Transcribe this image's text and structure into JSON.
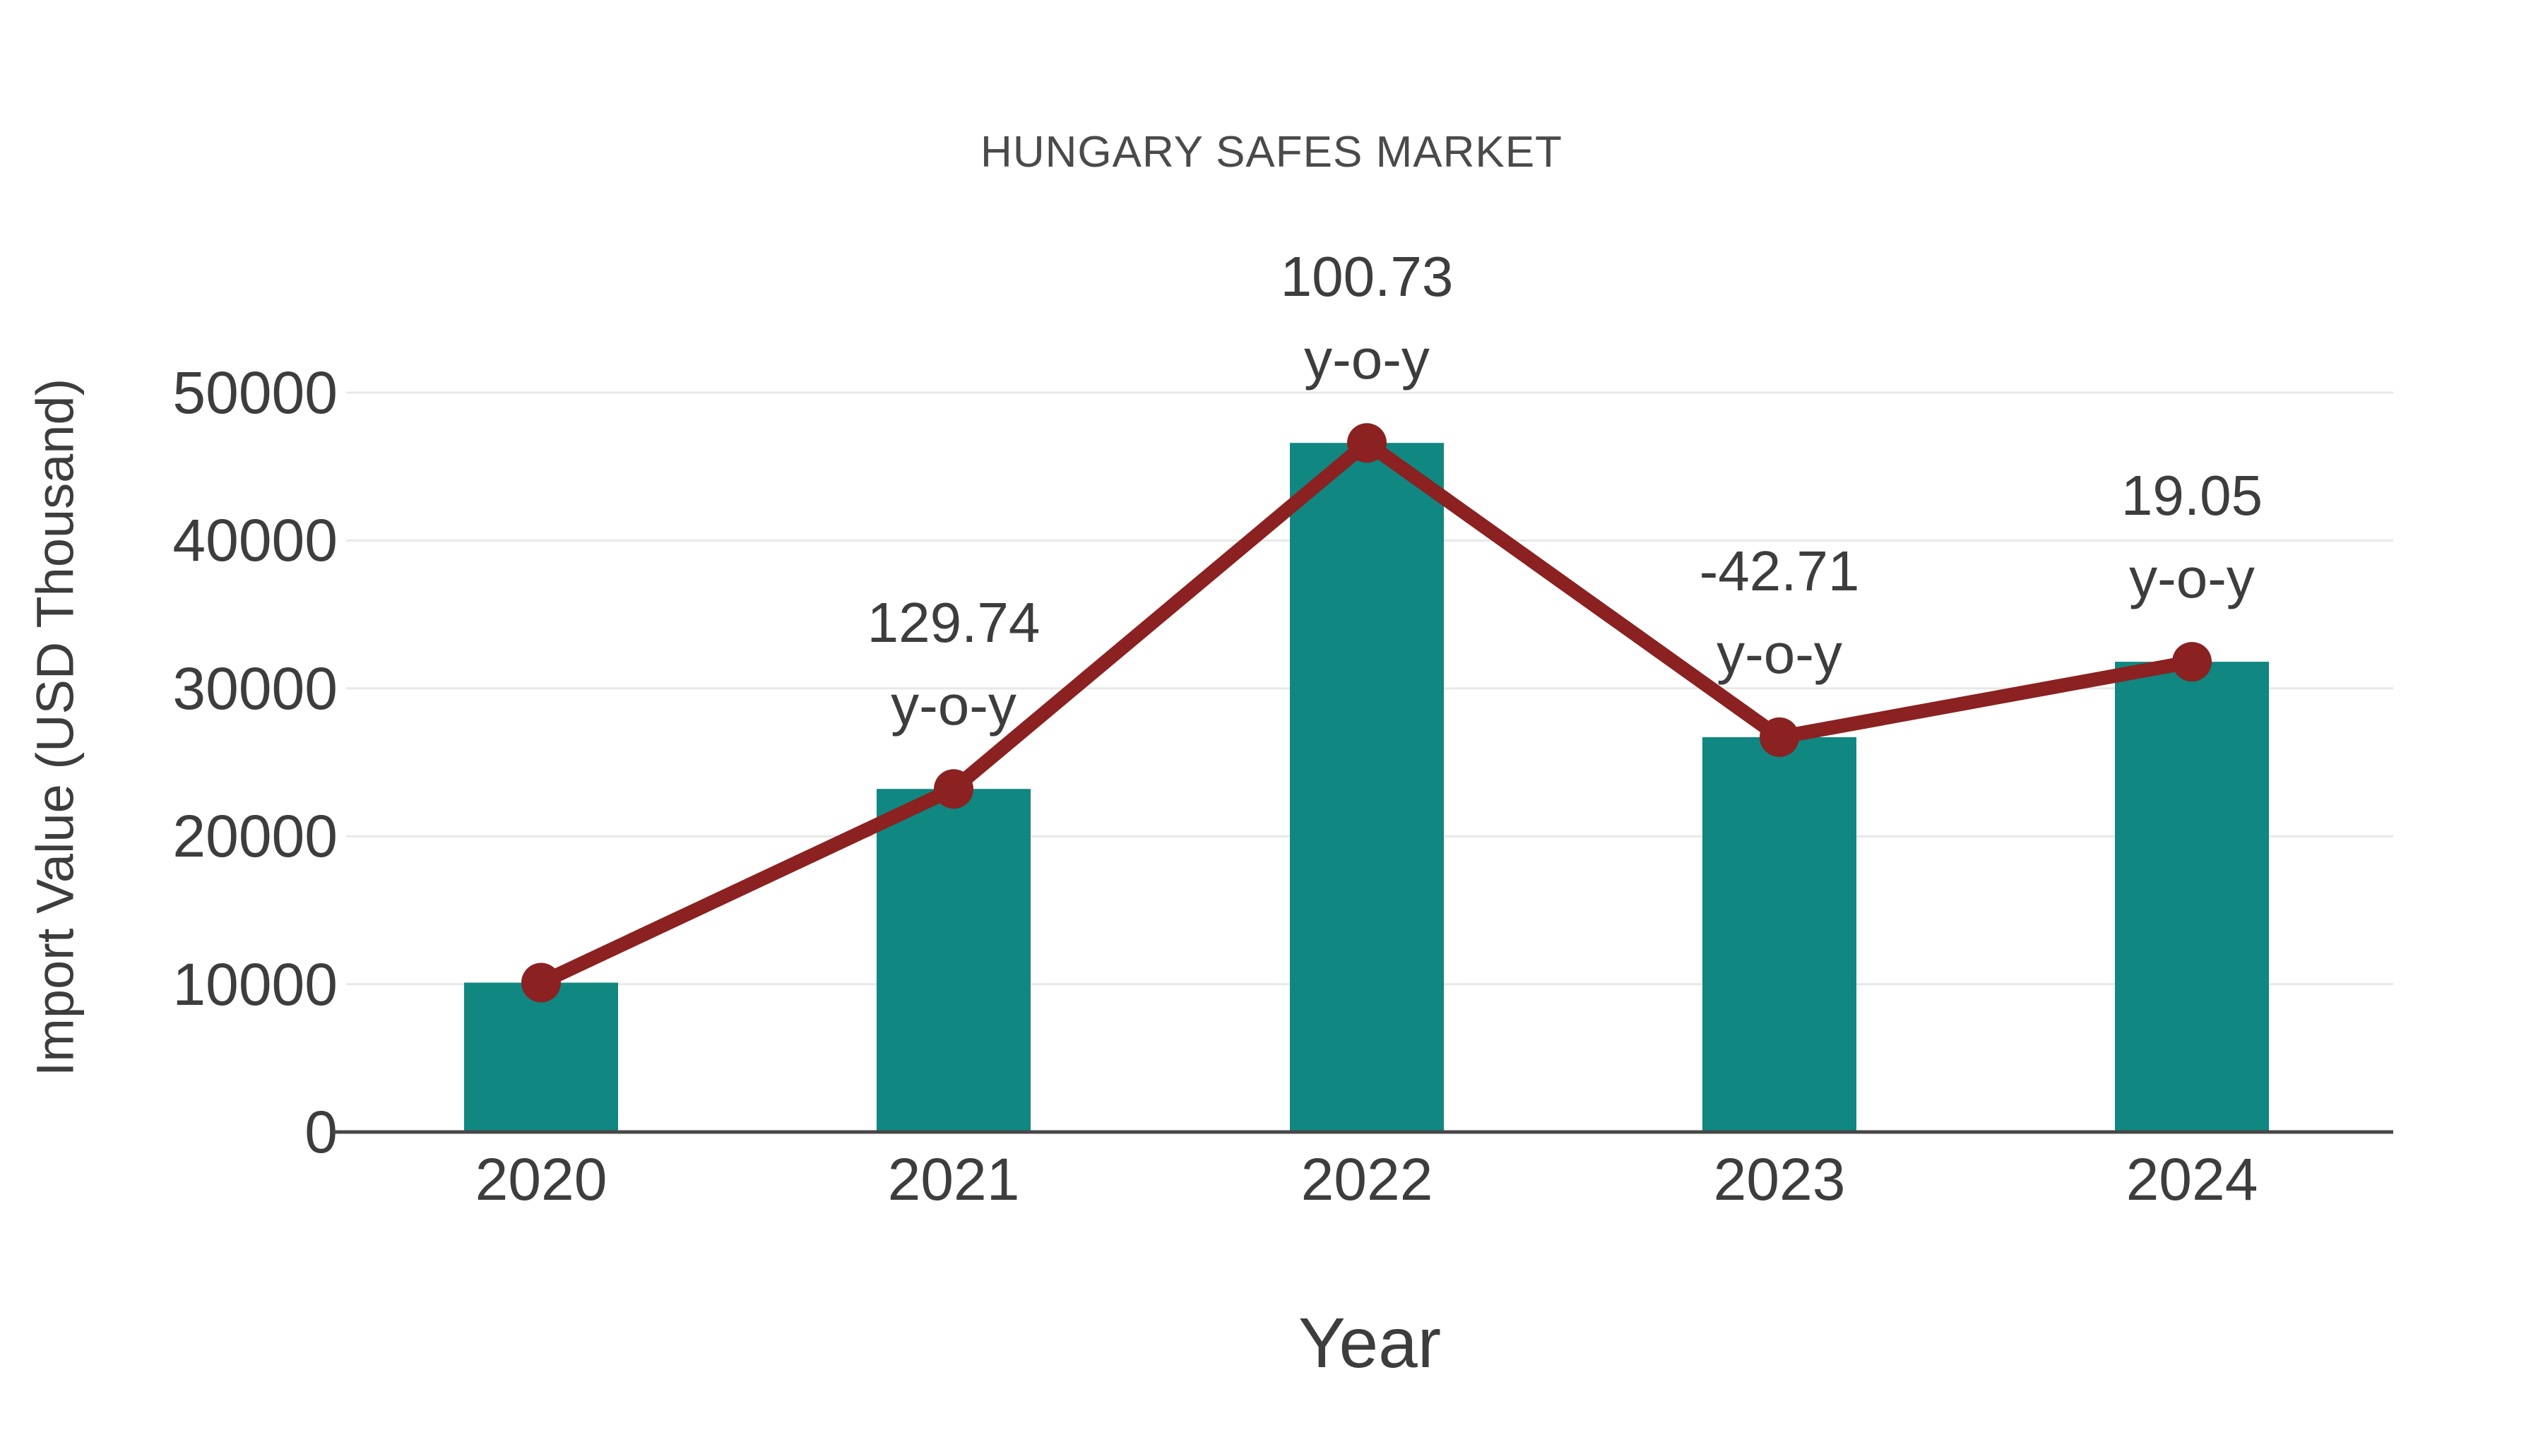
{
  "title": "HUNGARY SAFES MARKET",
  "y_axis": {
    "title": "Import Value (USD Thousand)",
    "ticks": [
      "0",
      "10000",
      "20000",
      "30000",
      "40000",
      "50000"
    ]
  },
  "x_axis": {
    "title": "Year"
  },
  "chart_data": {
    "type": "bar",
    "overlay": "line",
    "title": "HUNGARY SAFES MARKET",
    "xlabel": "Year",
    "ylabel": "Import Value (USD Thousand)",
    "categories": [
      "2020",
      "2021",
      "2022",
      "2023",
      "2024"
    ],
    "values": [
      10100,
      23200,
      46600,
      26700,
      31800
    ],
    "line_values": [
      10100,
      23200,
      46600,
      26700,
      31800
    ],
    "annotations": [
      {
        "category": "2021",
        "value": "129.74",
        "label": "y-o-y"
      },
      {
        "category": "2022",
        "value": "100.73",
        "label": "y-o-y"
      },
      {
        "category": "2023",
        "value": "-42.71",
        "label": "y-o-y"
      },
      {
        "category": "2024",
        "value": "19.05",
        "label": "y-o-y"
      }
    ],
    "ylim": [
      0,
      50000
    ],
    "ytick_step": 10000,
    "grid": "horizontal",
    "legend": "none",
    "colors": {
      "bar": "#108780",
      "line": "#8B2121",
      "text": "#3D3D3D",
      "grid": "#E8E8E8",
      "axis": "#474747"
    }
  }
}
